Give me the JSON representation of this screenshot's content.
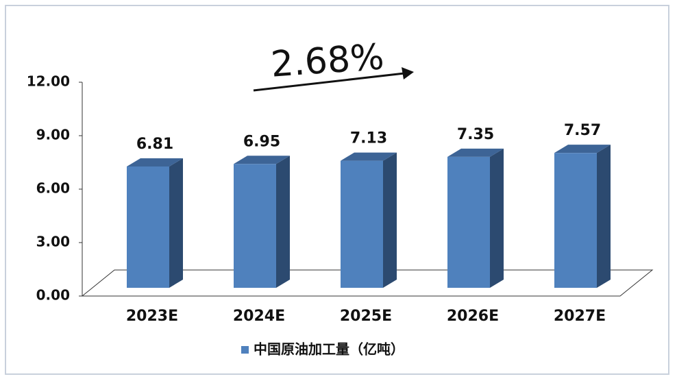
{
  "chart_data": {
    "type": "bar3d",
    "annotation": "2.68%",
    "categories": [
      "2023E",
      "2024E",
      "2025E",
      "2026E",
      "2027E"
    ],
    "series": [
      {
        "name": "中国原油加工量（亿吨）",
        "color": "#4f81bd",
        "values": [
          6.81,
          6.95,
          7.13,
          7.35,
          7.57
        ]
      }
    ],
    "ylim": [
      0,
      12
    ],
    "yticks": [
      {
        "value": 0,
        "label": "0.00"
      },
      {
        "value": 3,
        "label": "3.00"
      },
      {
        "value": 6,
        "label": "6.00"
      },
      {
        "value": 9,
        "label": "9.00"
      },
      {
        "value": 12,
        "label": "12.00"
      }
    ],
    "legend": "bottom"
  }
}
